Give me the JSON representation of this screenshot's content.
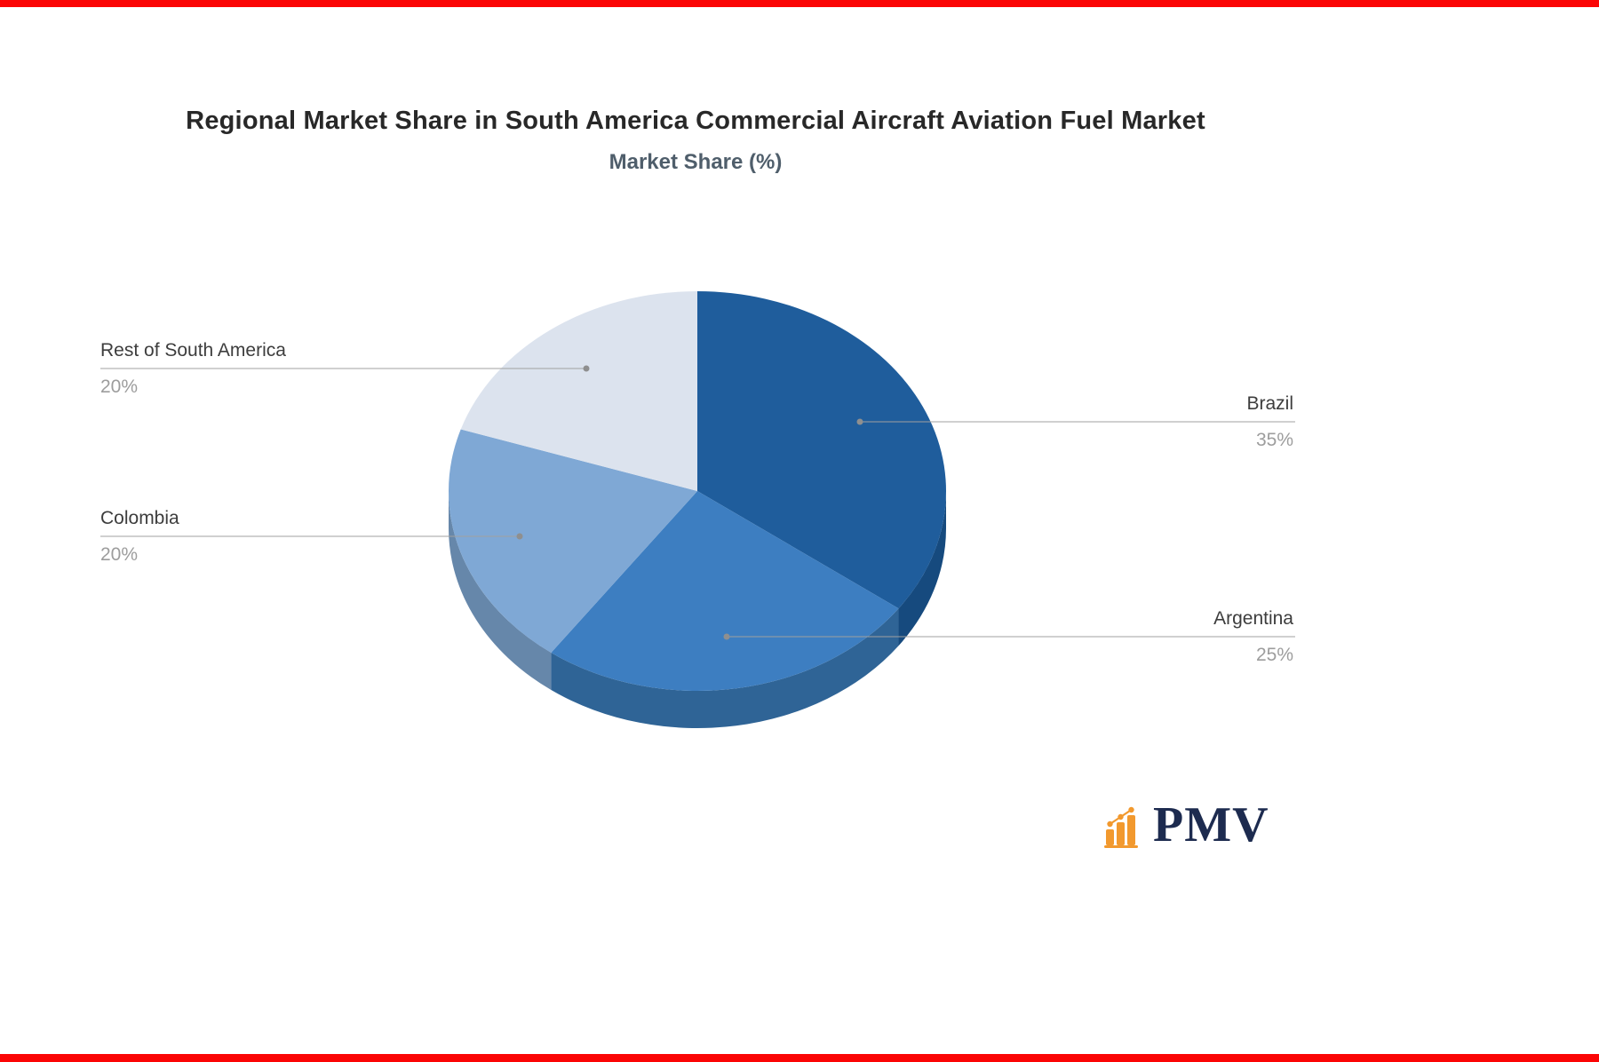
{
  "page": {
    "background": "#ffffff",
    "accent_bar_color": "#fb0505"
  },
  "chart_data": {
    "type": "pie",
    "title": "Regional Market Share in South America Commercial Aircraft Aviation Fuel Market",
    "subtitle": "Market Share (%)",
    "unit": "%",
    "effect": "3d",
    "start_angle_deg": -90,
    "direction": "clockwise",
    "legend_position": "none",
    "labels_outside": true,
    "categories": [
      "Brazil",
      "Argentina",
      "Colombia",
      "Rest of South America"
    ],
    "values": [
      35,
      25,
      20,
      20
    ],
    "slices": [
      {
        "label": "Brazil",
        "value": 35,
        "display": "35%",
        "color": "#1f5d9c",
        "depth_color": "#164a7e"
      },
      {
        "label": "Argentina",
        "value": 25,
        "display": "25%",
        "color": "#3d7ec1",
        "depth_color": "#2f6496"
      },
      {
        "label": "Colombia",
        "value": 20,
        "display": "20%",
        "color": "#7fa8d5",
        "depth_color": "#6687aa"
      },
      {
        "label": "Rest of South America",
        "value": 20,
        "display": "20%",
        "color": "#dce3ee",
        "depth_color": "#b6bfcc"
      }
    ],
    "leader_line_color": "#a0a0a0",
    "leader_dot_color": "#8f8f8f"
  },
  "branding": {
    "logo_text": "PMV",
    "logo_color": "#1d2b4f",
    "icon_color": "#f2992e",
    "icon": "bar-chart-icon"
  }
}
